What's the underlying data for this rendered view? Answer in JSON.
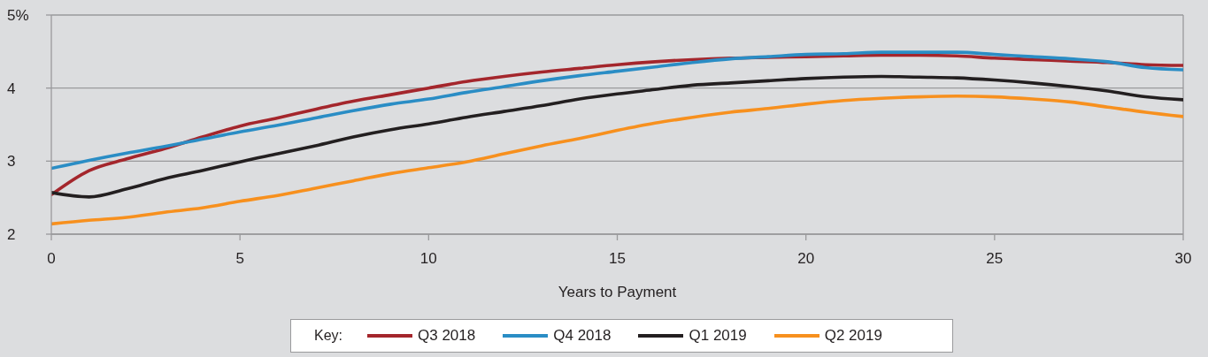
{
  "chart_data": {
    "type": "line",
    "xlabel": "Years to Payment",
    "legend_title": "Key:",
    "x": [
      0,
      1,
      2,
      3,
      4,
      5,
      6,
      7,
      8,
      9,
      10,
      11,
      12,
      13,
      14,
      15,
      16,
      17,
      18,
      19,
      20,
      21,
      22,
      23,
      24,
      25,
      26,
      27,
      28,
      29,
      30
    ],
    "series": [
      {
        "name": "Q3 2018",
        "color": "#a4262c",
        "values": [
          2.54,
          2.87,
          3.03,
          3.17,
          3.33,
          3.48,
          3.59,
          3.71,
          3.82,
          3.91,
          4.0,
          4.09,
          4.16,
          4.22,
          4.27,
          4.32,
          4.36,
          4.39,
          4.41,
          4.42,
          4.43,
          4.44,
          4.45,
          4.45,
          4.44,
          4.41,
          4.39,
          4.37,
          4.35,
          4.32,
          4.31
        ]
      },
      {
        "name": "Q4 2018",
        "color": "#2a8dc5",
        "values": [
          2.9,
          3.01,
          3.11,
          3.2,
          3.3,
          3.4,
          3.49,
          3.59,
          3.69,
          3.78,
          3.85,
          3.94,
          4.02,
          4.1,
          4.17,
          4.23,
          4.29,
          4.35,
          4.4,
          4.43,
          4.46,
          4.47,
          4.49,
          4.49,
          4.49,
          4.46,
          4.43,
          4.4,
          4.36,
          4.28,
          4.25
        ]
      },
      {
        "name": "Q1 2019",
        "color": "#231f20",
        "values": [
          2.57,
          2.51,
          2.62,
          2.76,
          2.87,
          2.99,
          3.1,
          3.21,
          3.33,
          3.43,
          3.51,
          3.6,
          3.68,
          3.76,
          3.85,
          3.92,
          3.98,
          4.04,
          4.07,
          4.1,
          4.13,
          4.15,
          4.16,
          4.15,
          4.14,
          4.11,
          4.07,
          4.02,
          3.96,
          3.88,
          3.84
        ]
      },
      {
        "name": "Q2 2019",
        "color": "#f7901e",
        "values": [
          2.14,
          2.19,
          2.23,
          2.3,
          2.36,
          2.45,
          2.53,
          2.63,
          2.73,
          2.83,
          2.91,
          2.99,
          3.1,
          3.21,
          3.31,
          3.42,
          3.52,
          3.6,
          3.67,
          3.72,
          3.78,
          3.83,
          3.86,
          3.88,
          3.89,
          3.88,
          3.85,
          3.81,
          3.74,
          3.67,
          3.61
        ]
      }
    ],
    "xlim": [
      0,
      30
    ],
    "xticks": [
      0,
      5,
      10,
      15,
      20,
      25,
      30
    ],
    "ylim": [
      2,
      5
    ],
    "yticks": [
      2,
      3,
      4,
      {
        "value": 5,
        "label": "5%"
      }
    ],
    "grid": "y",
    "legend": "bottom",
    "marker": "none",
    "line_style": "solid"
  }
}
